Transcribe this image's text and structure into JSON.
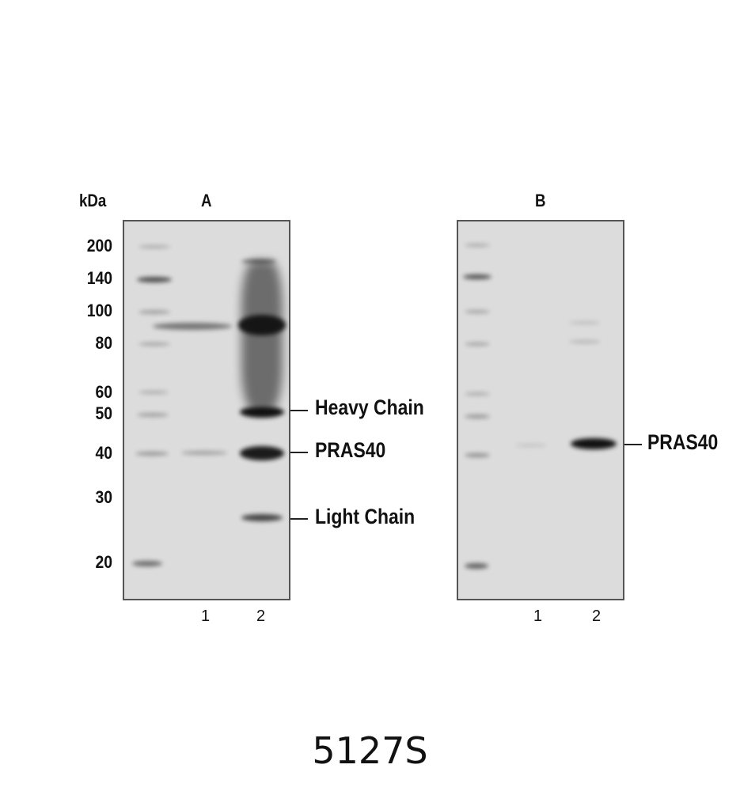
{
  "figure": {
    "unit_label": "kDa",
    "markers": [
      "200",
      "140",
      "100",
      "80",
      "60",
      "50",
      "40",
      "30",
      "20"
    ],
    "panels": [
      {
        "title": "A",
        "lanes": [
          "1",
          "2"
        ],
        "annotations": [
          "Heavy Chain",
          "PRAS40",
          "Light Chain"
        ]
      },
      {
        "title": "B",
        "lanes": [
          "1",
          "2"
        ],
        "annotations": [
          "PRAS40"
        ]
      }
    ],
    "catalog_number": "5127S"
  }
}
